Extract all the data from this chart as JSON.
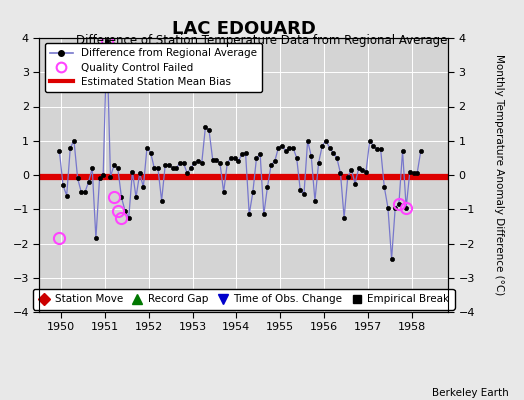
{
  "title": "LAC EDOUARD",
  "subtitle": "Difference of Station Temperature Data from Regional Average",
  "ylabel_right": "Monthly Temperature Anomaly Difference (°C)",
  "credit": "Berkeley Earth",
  "xlim": [
    1949.5,
    1958.83
  ],
  "ylim": [
    -4,
    4
  ],
  "yticks": [
    -4,
    -3,
    -2,
    -1,
    0,
    1,
    2,
    3,
    4
  ],
  "xticks": [
    1950,
    1951,
    1952,
    1953,
    1954,
    1955,
    1956,
    1957,
    1958
  ],
  "bias_value": -0.05,
  "fig_facecolor": "#e8e8e8",
  "plot_facecolor": "#d4d4d4",
  "grid_color": "#ffffff",
  "line_color": "#7777cc",
  "bias_color": "#dd0000",
  "qc_color": "#ff44ff",
  "marker_color": "#000000",
  "times": [
    1949.958,
    1950.042,
    1950.125,
    1950.208,
    1950.292,
    1950.375,
    1950.458,
    1950.542,
    1950.625,
    1950.708,
    1950.792,
    1950.875,
    1950.958,
    1951.042,
    1951.125,
    1951.208,
    1951.292,
    1951.375,
    1951.458,
    1951.542,
    1951.625,
    1951.708,
    1951.792,
    1951.875,
    1951.958,
    1952.042,
    1952.125,
    1952.208,
    1952.292,
    1952.375,
    1952.458,
    1952.542,
    1952.625,
    1952.708,
    1952.792,
    1952.875,
    1952.958,
    1953.042,
    1953.125,
    1953.208,
    1953.292,
    1953.375,
    1953.458,
    1953.542,
    1953.625,
    1953.708,
    1953.792,
    1953.875,
    1953.958,
    1954.042,
    1954.125,
    1954.208,
    1954.292,
    1954.375,
    1954.458,
    1954.542,
    1954.625,
    1954.708,
    1954.792,
    1954.875,
    1954.958,
    1955.042,
    1955.125,
    1955.208,
    1955.292,
    1955.375,
    1955.458,
    1955.542,
    1955.625,
    1955.708,
    1955.792,
    1955.875,
    1955.958,
    1956.042,
    1956.125,
    1956.208,
    1956.292,
    1956.375,
    1956.458,
    1956.542,
    1956.625,
    1956.708,
    1956.792,
    1956.875,
    1956.958,
    1957.042,
    1957.125,
    1957.208,
    1957.292,
    1957.375,
    1957.458,
    1957.542,
    1957.625,
    1957.708,
    1957.792,
    1957.875,
    1957.958,
    1958.042,
    1958.125,
    1958.208
  ],
  "values": [
    0.7,
    -0.3,
    -0.6,
    0.8,
    1.0,
    -0.1,
    -0.5,
    -0.5,
    -0.2,
    0.2,
    -1.85,
    -0.1,
    0.0,
    3.9,
    -0.05,
    0.3,
    0.2,
    -0.65,
    -1.05,
    -1.25,
    0.1,
    -0.65,
    0.05,
    -0.35,
    0.8,
    0.65,
    0.2,
    0.2,
    -0.75,
    0.3,
    0.3,
    0.2,
    0.2,
    0.35,
    0.35,
    0.05,
    0.2,
    0.35,
    0.4,
    0.35,
    1.4,
    1.3,
    0.45,
    0.45,
    0.35,
    -0.5,
    0.35,
    0.5,
    0.5,
    0.4,
    0.6,
    0.65,
    -1.15,
    -0.5,
    0.5,
    0.6,
    -1.15,
    -0.35,
    0.3,
    0.4,
    0.8,
    0.85,
    0.7,
    0.8,
    0.8,
    0.5,
    -0.45,
    -0.55,
    1.0,
    0.55,
    -0.75,
    0.35,
    0.85,
    1.0,
    0.8,
    0.65,
    0.5,
    0.05,
    -1.25,
    -0.05,
    0.15,
    -0.25,
    0.2,
    0.15,
    0.1,
    1.0,
    0.85,
    0.75,
    0.75,
    -0.35,
    -0.95,
    -2.45,
    -0.95,
    -0.85,
    0.7,
    -0.95,
    0.1,
    0.05,
    0.05,
    0.7
  ],
  "qc_failed_times": [
    1949.958,
    1951.042,
    1951.208,
    1951.292,
    1951.375,
    1957.708,
    1957.875
  ],
  "qc_failed_values": [
    -1.85,
    3.9,
    -0.65,
    -1.05,
    -1.25,
    -0.85,
    -0.95
  ],
  "legend1_labels": [
    "Difference from Regional Average",
    "Quality Control Failed",
    "Estimated Station Mean Bias"
  ],
  "legend2_labels": [
    "Station Move",
    "Record Gap",
    "Time of Obs. Change",
    "Empirical Break"
  ],
  "legend2_colors": [
    "#cc0000",
    "#007700",
    "#0000cc",
    "#000000"
  ],
  "legend2_markers": [
    "D",
    "^",
    "v",
    "s"
  ]
}
